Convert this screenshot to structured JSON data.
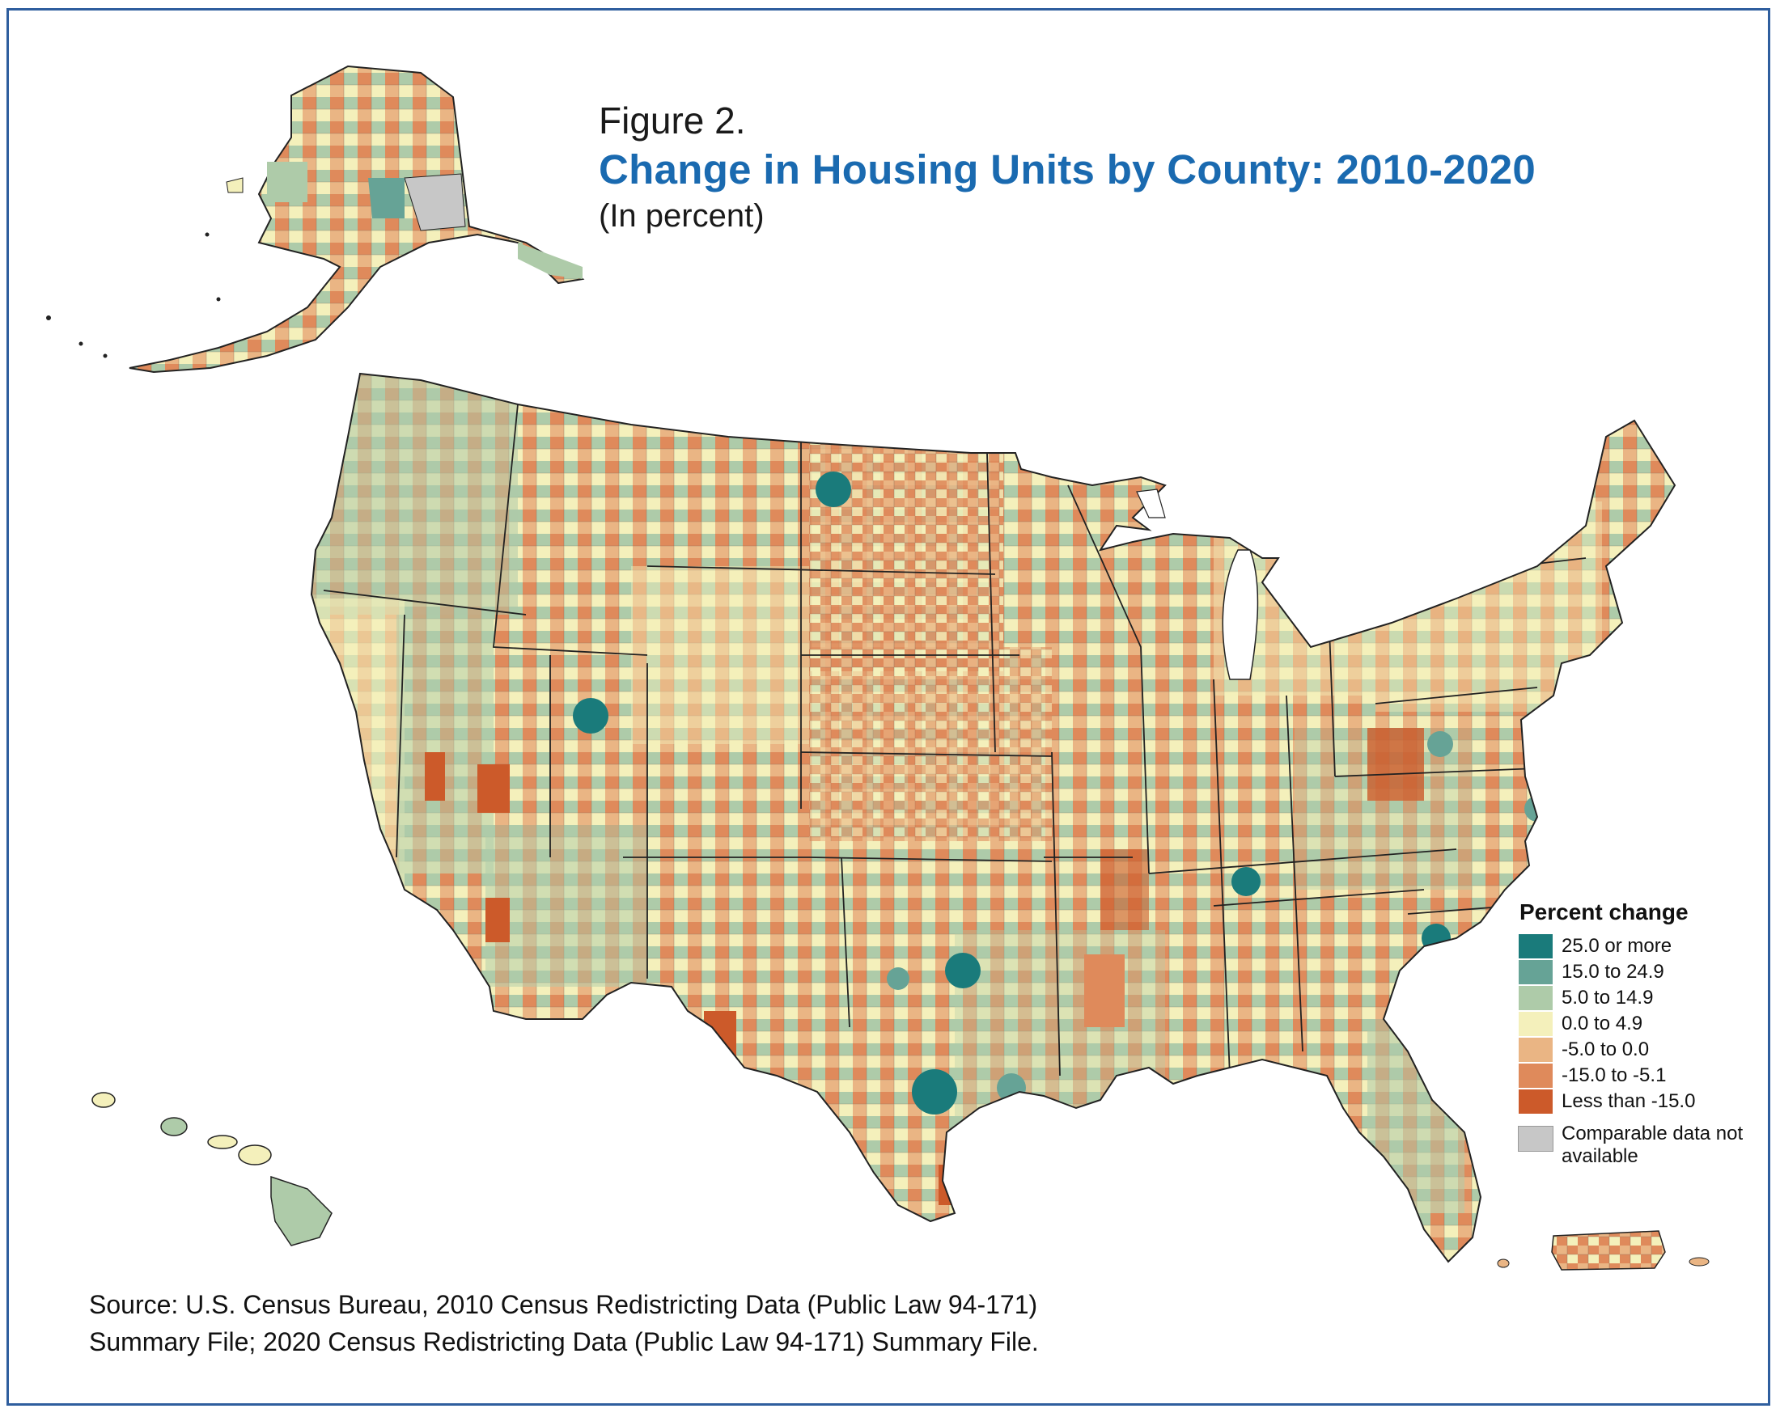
{
  "figure": {
    "label": "Figure 2.",
    "title": "Change in Housing Units by County: 2010-2020",
    "subtitle": "(In percent)"
  },
  "legend": {
    "title": "Percent change",
    "items": [
      {
        "label": "25.0 or more",
        "color": "#1a7b7b"
      },
      {
        "label": "15.0 to 24.9",
        "color": "#66a396"
      },
      {
        "label": "5.0 to 14.9",
        "color": "#aecba9"
      },
      {
        "label": "0.0 to 4.9",
        "color": "#f4f0bb"
      },
      {
        "label": "-5.0 to 0.0",
        "color": "#eab584"
      },
      {
        "label": "-15.0 to -5.1",
        "color": "#df8a5b"
      },
      {
        "label": "Less than -15.0",
        "color": "#cc5a2a"
      }
    ],
    "na": {
      "label": "Comparable data not available",
      "color": "#c7c7c7"
    }
  },
  "source": {
    "line1": "Source: U.S. Census Bureau, 2010 Census Redistricting Data (Public Law 94-171)",
    "line2": "Summary File; 2020 Census Redistricting Data (Public Law 94-171) Summary File."
  },
  "colors": {
    "frame": "#2f5e9e",
    "title": "#1a6ab0",
    "border_line": "#222222"
  }
}
